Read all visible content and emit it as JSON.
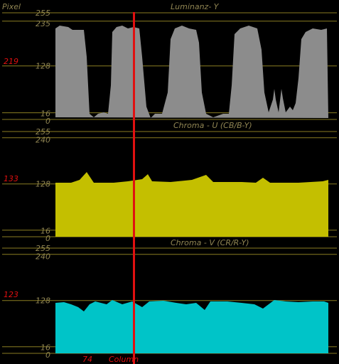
{
  "header": {
    "axis_label": "Pixel",
    "cursor_column": "74",
    "column_label": "Column"
  },
  "colors": {
    "background": "#000000",
    "grid": "#8a7d22",
    "label": "#8f8452",
    "cursor": "#e01010",
    "cursor_text": "#e01010"
  },
  "panels": [
    {
      "id": "luma",
      "title": "Luminanz- Y",
      "fill": "#8c8c8c",
      "cursor_value": "219",
      "ticks": [
        {
          "value": 255,
          "label": "255"
        },
        {
          "value": 235,
          "label": "235"
        },
        {
          "value": 128,
          "label": "128"
        },
        {
          "value": 16,
          "label": "16"
        },
        {
          "value": 0,
          "label": "0"
        }
      ]
    },
    {
      "id": "chroma-u",
      "title": "Chroma - U (CB/B-Y)",
      "fill": "#c4bf00",
      "cursor_value": "133",
      "ticks": [
        {
          "value": 255,
          "label": "255"
        },
        {
          "value": 240,
          "label": "240"
        },
        {
          "value": 128,
          "label": "128"
        },
        {
          "value": 16,
          "label": "16"
        },
        {
          "value": 0,
          "label": "0"
        }
      ]
    },
    {
      "id": "chroma-v",
      "title": "Chroma - V (CR/R-Y)",
      "fill": "#00c4c8",
      "cursor_value": "123",
      "ticks": [
        {
          "value": 255,
          "label": "255"
        },
        {
          "value": 240,
          "label": "240"
        },
        {
          "value": 128,
          "label": "128"
        },
        {
          "value": 16,
          "label": "16"
        },
        {
          "value": 0,
          "label": "0"
        }
      ]
    }
  ]
}
